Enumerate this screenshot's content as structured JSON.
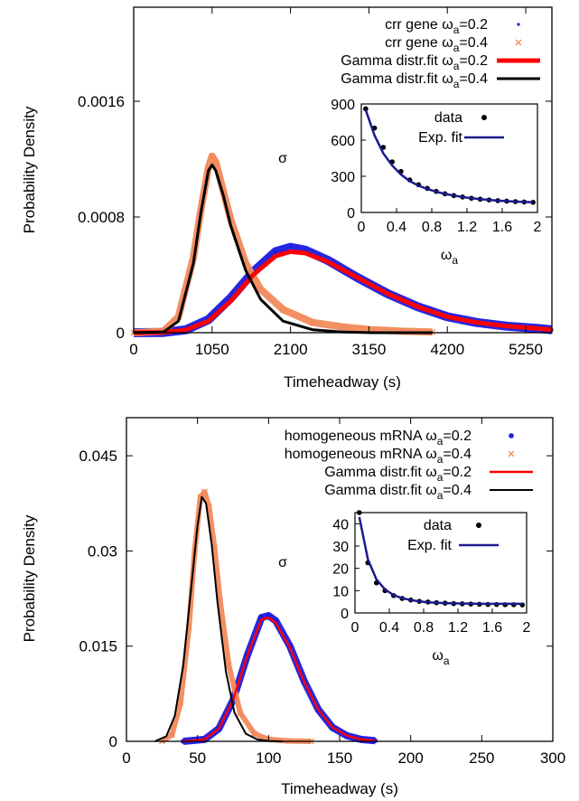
{
  "chart_data": [
    {
      "type": "line",
      "xlabel": "Timeheadway (s)",
      "ylabel": "Probability Density",
      "xlim": [
        0,
        5600
      ],
      "ylim": [
        0,
        0.00225
      ],
      "xticks": [
        "0",
        "1050",
        "2100",
        "3150",
        "4200",
        "5250"
      ],
      "yticks": [
        "0",
        "0.0008",
        "0.0016"
      ],
      "legend_position": "top-right",
      "series": [
        {
          "name_prefix": "crr gene ω",
          "name_sub": "a",
          "name_suffix": "=0.2",
          "marker": "square",
          "color": "#1a1adf",
          "x": [
            0,
            400,
            700,
            1000,
            1300,
            1600,
            1900,
            2100,
            2300,
            2600,
            3000,
            3400,
            3800,
            4200,
            4600,
            5000,
            5400,
            5600
          ],
          "y": [
            0,
            2e-06,
            2e-05,
            9e-05,
            0.00024,
            0.00042,
            0.00056,
            0.00059,
            0.00057,
            0.0005,
            0.00038,
            0.00027,
            0.00018,
            0.00011,
            7e-05,
            4.5e-05,
            3e-05,
            2e-05
          ]
        },
        {
          "name_prefix": "crr gene ω",
          "name_sub": "a",
          "name_suffix": "=0.4",
          "marker": "x",
          "color": "#f2895b",
          "x": [
            0,
            400,
            600,
            800,
            900,
            1000,
            1050,
            1100,
            1200,
            1300,
            1500,
            1700,
            2000,
            2400,
            2800,
            3200,
            3600,
            4000
          ],
          "y": [
            0,
            1e-05,
            0.00011,
            0.00052,
            0.00085,
            0.00114,
            0.00122,
            0.00118,
            0.00098,
            0.00078,
            0.00048,
            0.0003,
            0.00016,
            7e-05,
            4e-05,
            2e-05,
            1e-05,
            5e-06
          ]
        },
        {
          "name_prefix": "Gamma distr.fit ω",
          "name_sub": "a",
          "name_suffix": "=0.2",
          "marker": "line",
          "color": "#ff0000",
          "x": [
            0,
            400,
            700,
            1000,
            1300,
            1600,
            1900,
            2100,
            2300,
            2600,
            3000,
            3400,
            3800,
            4200,
            4600,
            5000,
            5400,
            5600
          ],
          "y": [
            0,
            2e-06,
            2e-05,
            8e-05,
            0.00022,
            0.0004,
            0.00053,
            0.00056,
            0.00055,
            0.00049,
            0.00038,
            0.00027,
            0.00018,
            0.00011,
            7e-05,
            4.5e-05,
            3e-05,
            2e-05
          ]
        },
        {
          "name_prefix": "Gamma distr.fit ω",
          "name_sub": "a",
          "name_suffix": "=0.4",
          "marker": "line",
          "color": "#000000",
          "x": [
            0,
            400,
            600,
            800,
            900,
            1000,
            1050,
            1100,
            1200,
            1300,
            1500,
            1700,
            2000,
            2400,
            2800,
            3200,
            3600,
            4000
          ],
          "y": [
            0,
            5e-06,
            8e-05,
            0.00048,
            0.00083,
            0.00112,
            0.00116,
            0.00112,
            0.00095,
            0.00074,
            0.00043,
            0.00023,
            8e-05,
            2e-05,
            5e-06,
            0,
            0,
            0
          ]
        }
      ],
      "inset": {
        "type": "scatter",
        "ylabel": "σ",
        "xlabel_prefix": "ω",
        "xlabel_sub": "a",
        "xlim": [
          0,
          2
        ],
        "ylim": [
          0,
          900
        ],
        "xticks": [
          "0",
          "0.4",
          "0.8",
          "1.2",
          "1.6",
          "2"
        ],
        "yticks": [
          "0",
          "300",
          "600",
          "900"
        ],
        "series": [
          {
            "name": "data",
            "marker": "dot",
            "color": "#000000",
            "x": [
              0.05,
              0.15,
              0.25,
              0.35,
              0.45,
              0.55,
              0.65,
              0.75,
              0.85,
              0.95,
              1.05,
              1.15,
              1.25,
              1.35,
              1.45,
              1.55,
              1.65,
              1.75,
              1.85,
              1.95
            ],
            "y": [
              860,
              700,
              540,
              420,
              340,
              270,
              230,
              200,
              175,
              155,
              140,
              128,
              118,
              110,
              104,
              98,
              94,
              90,
              87,
              84
            ]
          },
          {
            "name": "Exp. fit",
            "marker": "line",
            "color": "#1a1a8f",
            "x": [
              0.05,
              0.15,
              0.25,
              0.35,
              0.45,
              0.55,
              0.65,
              0.75,
              0.85,
              0.95,
              1.05,
              1.15,
              1.25,
              1.35,
              1.45,
              1.55,
              1.65,
              1.75,
              1.85,
              1.95
            ],
            "y": [
              850,
              640,
              490,
              390,
              315,
              260,
              222,
              194,
              172,
              154,
              140,
              128,
              118,
              110,
              104,
              98,
              94,
              90,
              87,
              84
            ]
          }
        ]
      }
    },
    {
      "type": "line",
      "xlabel": "Timeheadway (s)",
      "ylabel": "Probability Density",
      "xlim": [
        0,
        300
      ],
      "ylim": [
        0,
        0.051
      ],
      "xticks": [
        "0",
        "50",
        "100",
        "150",
        "200",
        "250",
        "300"
      ],
      "yticks": [
        "0",
        "0.015",
        "0.03",
        "0.045"
      ],
      "legend_position": "top-right",
      "series": [
        {
          "name_prefix": "homogeneous mRNA ω",
          "name_sub": "a",
          "name_suffix": "=0.2",
          "marker": "star",
          "color": "#1a1adf",
          "x": [
            40,
            55,
            65,
            75,
            85,
            95,
            100,
            105,
            115,
            125,
            135,
            145,
            155,
            165,
            175
          ],
          "y": [
            0,
            0.0003,
            0.002,
            0.0065,
            0.0135,
            0.0195,
            0.0198,
            0.019,
            0.015,
            0.0095,
            0.005,
            0.0022,
            0.0009,
            0.0003,
            0.0001
          ]
        },
        {
          "name_prefix": "homogeneous mRNA ω",
          "name_sub": "a",
          "name_suffix": "=0.4",
          "marker": "x",
          "color": "#f2895b",
          "x": [
            25,
            32,
            38,
            44,
            48,
            52,
            55,
            58,
            62,
            66,
            72,
            80,
            90,
            100,
            115,
            130
          ],
          "y": [
            0,
            0.001,
            0.006,
            0.018,
            0.03,
            0.0385,
            0.0393,
            0.037,
            0.0305,
            0.022,
            0.012,
            0.0045,
            0.0012,
            0.0003,
            5e-05,
            0
          ]
        },
        {
          "name_prefix": "Gamma distr.fit ω",
          "name_sub": "a",
          "name_suffix": "=0.2",
          "marker": "line",
          "color": "#ff0000",
          "x": [
            40,
            55,
            65,
            75,
            85,
            95,
            100,
            105,
            115,
            125,
            135,
            145,
            155,
            165,
            175
          ],
          "y": [
            0,
            0.0003,
            0.002,
            0.0065,
            0.0135,
            0.0192,
            0.0195,
            0.0187,
            0.0148,
            0.0094,
            0.005,
            0.0022,
            0.0009,
            0.0003,
            0.0001
          ]
        },
        {
          "name_prefix": "Gamma distr.fit ω",
          "name_sub": "a",
          "name_suffix": "=0.4",
          "marker": "line",
          "color": "#000000",
          "x": [
            20,
            28,
            34,
            40,
            45,
            50,
            53,
            56,
            60,
            64,
            70,
            76,
            84,
            92,
            100,
            110
          ],
          "y": [
            0,
            0.0008,
            0.004,
            0.012,
            0.023,
            0.034,
            0.0385,
            0.0375,
            0.031,
            0.022,
            0.011,
            0.0045,
            0.0012,
            0.0003,
            5e-05,
            0
          ]
        }
      ],
      "inset": {
        "type": "scatter",
        "ylabel": "σ",
        "xlabel_prefix": "ω",
        "xlabel_sub": "a",
        "xlim": [
          0,
          2
        ],
        "ylim": [
          0,
          45
        ],
        "xticks": [
          "0",
          "0.4",
          "0.8",
          "1.2",
          "1.6",
          "2"
        ],
        "yticks": [
          "0",
          "10",
          "20",
          "30",
          "40"
        ],
        "series": [
          {
            "name": "data",
            "marker": "dot",
            "color": "#000000",
            "x": [
              0.05,
              0.15,
              0.25,
              0.35,
              0.45,
              0.55,
              0.65,
              0.75,
              0.85,
              0.95,
              1.05,
              1.15,
              1.25,
              1.35,
              1.45,
              1.55,
              1.65,
              1.75,
              1.85,
              1.95
            ],
            "y": [
              45,
              22.5,
              13.5,
              10,
              7.8,
              6.5,
              5.8,
              5.2,
              4.9,
              4.6,
              4.4,
              4.2,
              4.1,
              4.0,
              3.9,
              3.8,
              3.8,
              3.7,
              3.7,
              3.6
            ]
          },
          {
            "name": "Exp. fit",
            "marker": "line",
            "color": "#1a1a8f",
            "x": [
              0.05,
              0.15,
              0.25,
              0.35,
              0.45,
              0.55,
              0.65,
              0.75,
              0.85,
              0.95,
              1.05,
              1.15,
              1.25,
              1.35,
              1.45,
              1.55,
              1.65,
              1.75,
              1.85,
              1.95
            ],
            "y": [
              43,
              24,
              15,
              10.5,
              8,
              6.6,
              5.8,
              5.2,
              4.8,
              4.6,
              4.4,
              4.3,
              4.2,
              4.2,
              4.1,
              4.1,
              4.1,
              4.1,
              4.1,
              4.1
            ]
          }
        ]
      }
    }
  ]
}
